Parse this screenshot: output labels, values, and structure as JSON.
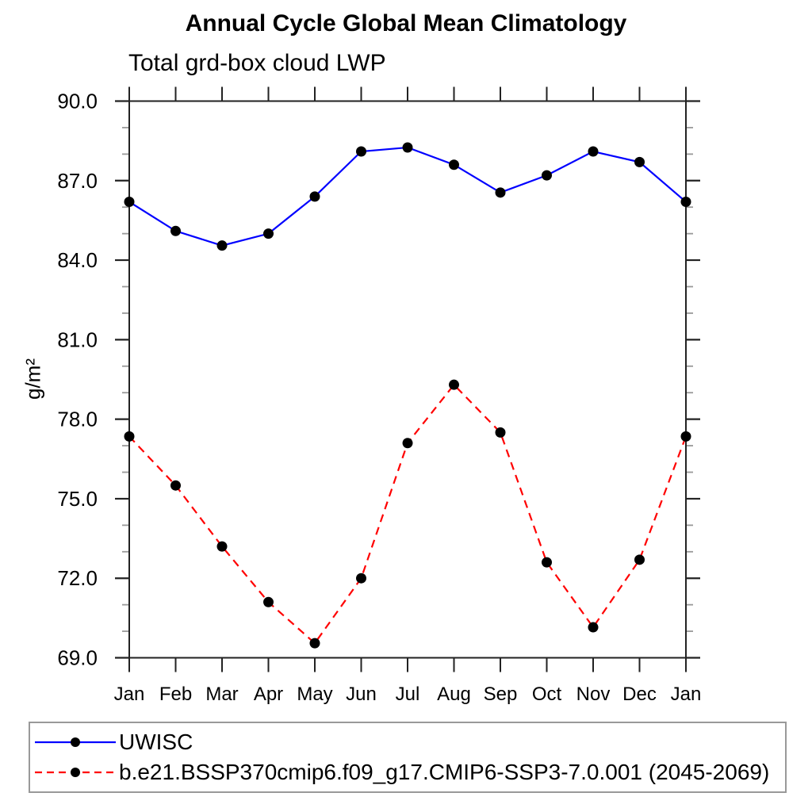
{
  "page": {
    "title": "Annual Cycle Global Mean Climatology",
    "subtitle": "Total grd-box cloud LWP",
    "y_axis_label": "g/m²"
  },
  "chart_data": {
    "type": "line",
    "title": "Annual Cycle Global Mean Climatology",
    "subtitle": "Total grd-box cloud LWP",
    "xlabel": "",
    "ylabel": "g/m²",
    "categories": [
      "Jan",
      "Feb",
      "Mar",
      "Apr",
      "May",
      "Jun",
      "Jul",
      "Aug",
      "Sep",
      "Oct",
      "Nov",
      "Dec",
      "Jan"
    ],
    "ylim": [
      69.0,
      90.0
    ],
    "ytick_major": [
      69,
      72,
      75,
      78,
      81,
      84,
      87,
      90
    ],
    "ytick_labels": [
      "69.0",
      "72.0",
      "75.0",
      "78.0",
      "81.0",
      "84.0",
      "87.0",
      "90.0"
    ],
    "ytick_minor_step": 1,
    "grid": false,
    "legend_position": "bottom-left-box",
    "axis_color": "#222222",
    "minor_tick_color": "#999999",
    "marker_color": "#000000",
    "series": [
      {
        "name": "UWISC",
        "color": "#0000ff",
        "line_style": "solid",
        "marker": "circle",
        "values": [
          86.2,
          85.1,
          84.55,
          85.0,
          86.4,
          88.1,
          88.25,
          87.6,
          86.55,
          87.2,
          88.1,
          87.7,
          86.2
        ]
      },
      {
        "name": "b.e21.BSSP370cmip6.f09_g17.CMIP6-SSP3-7.0.001 (2045-2069)",
        "color": "#ff0000",
        "line_style": "dashed",
        "marker": "circle",
        "values": [
          77.35,
          75.5,
          73.2,
          71.1,
          69.55,
          72.0,
          77.1,
          79.3,
          77.5,
          72.6,
          70.15,
          72.7,
          77.35
        ]
      }
    ]
  }
}
